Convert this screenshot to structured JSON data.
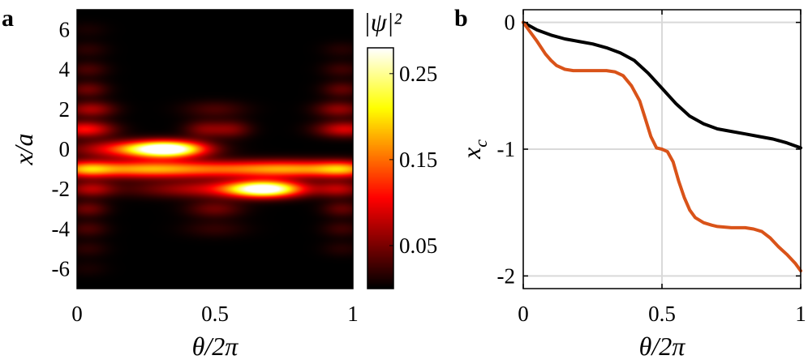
{
  "chart_data": [
    {
      "panel": "a",
      "type": "heatmap",
      "xlabel": "θ/2π",
      "ylabel": "x/a",
      "x_ticks": [
        "0",
        "0.5",
        "1"
      ],
      "y_ticks": [
        "6",
        "4",
        "2",
        "0",
        "-2",
        "-4",
        "-6"
      ],
      "xlim": [
        0,
        1
      ],
      "ylim": [
        -7,
        7
      ],
      "colorbar": {
        "label": "|ψ|²",
        "ticks": [
          "0.25",
          "0.15",
          "0.05"
        ],
        "range": [
          0,
          0.28
        ],
        "colormap": "hot"
      },
      "blobs": [
        {
          "x": 0.33,
          "y": 0,
          "sx": 0.09,
          "sy": 0.28,
          "amp": 0.28
        },
        {
          "x": 0.68,
          "y": -2,
          "sx": 0.09,
          "sy": 0.28,
          "amp": 0.28
        },
        {
          "x": 0.2,
          "y": 0,
          "sx": 0.14,
          "sy": 0.3,
          "amp": 0.12
        },
        {
          "x": 0.5,
          "y": -1,
          "sx": 0.28,
          "sy": 0.3,
          "amp": 0.12
        },
        {
          "x": 0.22,
          "y": -1,
          "sx": 0.15,
          "sy": 0.3,
          "amp": 0.1
        },
        {
          "x": 0.8,
          "y": -1,
          "sx": 0.15,
          "sy": 0.3,
          "amp": 0.1
        },
        {
          "x": 0.5,
          "y": -2,
          "sx": 0.2,
          "sy": 0.3,
          "amp": 0.08
        },
        {
          "x": 0.03,
          "y": 1,
          "sx": 0.07,
          "sy": 0.28,
          "amp": 0.11
        },
        {
          "x": 0.03,
          "y": -1,
          "sx": 0.07,
          "sy": 0.28,
          "amp": 0.12
        },
        {
          "x": 0.97,
          "y": -1,
          "sx": 0.07,
          "sy": 0.28,
          "amp": 0.11
        },
        {
          "x": 0.97,
          "y": 1,
          "sx": 0.07,
          "sy": 0.28,
          "amp": 0.09
        },
        {
          "x": 0.05,
          "y": 2,
          "sx": 0.06,
          "sy": 0.28,
          "amp": 0.07
        },
        {
          "x": 0.05,
          "y": -2,
          "sx": 0.06,
          "sy": 0.28,
          "amp": 0.07
        },
        {
          "x": 0.95,
          "y": -2,
          "sx": 0.06,
          "sy": 0.28,
          "amp": 0.07
        },
        {
          "x": 0.95,
          "y": 2,
          "sx": 0.06,
          "sy": 0.28,
          "amp": 0.06
        },
        {
          "x": 0.04,
          "y": 3,
          "sx": 0.05,
          "sy": 0.28,
          "amp": 0.045
        },
        {
          "x": 0.04,
          "y": -3,
          "sx": 0.05,
          "sy": 0.28,
          "amp": 0.045
        },
        {
          "x": 0.96,
          "y": -3,
          "sx": 0.05,
          "sy": 0.28,
          "amp": 0.04
        },
        {
          "x": 0.96,
          "y": 3,
          "sx": 0.05,
          "sy": 0.28,
          "amp": 0.04
        },
        {
          "x": 0.04,
          "y": 4,
          "sx": 0.05,
          "sy": 0.28,
          "amp": 0.03
        },
        {
          "x": 0.04,
          "y": -4,
          "sx": 0.05,
          "sy": 0.28,
          "amp": 0.03
        },
        {
          "x": 0.96,
          "y": 4,
          "sx": 0.05,
          "sy": 0.28,
          "amp": 0.025
        },
        {
          "x": 0.96,
          "y": -4,
          "sx": 0.05,
          "sy": 0.28,
          "amp": 0.025
        },
        {
          "x": 0.04,
          "y": 5,
          "sx": 0.05,
          "sy": 0.28,
          "amp": 0.018
        },
        {
          "x": 0.04,
          "y": -5,
          "sx": 0.05,
          "sy": 0.28,
          "amp": 0.018
        },
        {
          "x": 0.96,
          "y": 5,
          "sx": 0.05,
          "sy": 0.28,
          "amp": 0.015
        },
        {
          "x": 0.96,
          "y": -5,
          "sx": 0.05,
          "sy": 0.28,
          "amp": 0.015
        },
        {
          "x": 0.04,
          "y": 6,
          "sx": 0.05,
          "sy": 0.28,
          "amp": 0.01
        },
        {
          "x": 0.04,
          "y": -6,
          "sx": 0.05,
          "sy": 0.28,
          "amp": 0.01
        },
        {
          "x": 0.46,
          "y": 1,
          "sx": 0.05,
          "sy": 0.3,
          "amp": 0.05
        },
        {
          "x": 0.56,
          "y": 1,
          "sx": 0.05,
          "sy": 0.3,
          "amp": 0.05
        },
        {
          "x": 0.5,
          "y": -3,
          "sx": 0.07,
          "sy": 0.3,
          "amp": 0.045
        },
        {
          "x": 0.5,
          "y": 2,
          "sx": 0.08,
          "sy": 0.3,
          "amp": 0.03
        },
        {
          "x": 0.5,
          "y": -4,
          "sx": 0.08,
          "sy": 0.3,
          "amp": 0.02
        }
      ]
    },
    {
      "panel": "b",
      "type": "line",
      "xlabel": "θ/2π",
      "ylabel": "x",
      "ylabel_sub": "c",
      "x_ticks": [
        "0",
        "0.5",
        "1"
      ],
      "y_ticks": [
        "0",
        "-1",
        "-2"
      ],
      "xlim": [
        0,
        1
      ],
      "ylim": [
        -2.1,
        0.1
      ],
      "grid": true,
      "series": [
        {
          "color": "#000000",
          "x": [
            0,
            0.05,
            0.1,
            0.15,
            0.2,
            0.25,
            0.3,
            0.35,
            0.4,
            0.45,
            0.5,
            0.55,
            0.6,
            0.65,
            0.7,
            0.75,
            0.8,
            0.85,
            0.9,
            0.95,
            1
          ],
          "y": [
            0,
            -0.06,
            -0.1,
            -0.13,
            -0.15,
            -0.17,
            -0.2,
            -0.24,
            -0.3,
            -0.4,
            -0.52,
            -0.64,
            -0.74,
            -0.8,
            -0.84,
            -0.86,
            -0.88,
            -0.9,
            -0.92,
            -0.95,
            -0.99
          ]
        },
        {
          "color": "#d95319",
          "x": [
            0,
            0.02,
            0.05,
            0.08,
            0.1,
            0.12,
            0.15,
            0.18,
            0.2,
            0.25,
            0.3,
            0.33,
            0.36,
            0.39,
            0.42,
            0.44,
            0.46,
            0.48,
            0.5,
            0.52,
            0.54,
            0.56,
            0.58,
            0.6,
            0.62,
            0.65,
            0.68,
            0.7,
            0.75,
            0.8,
            0.83,
            0.86,
            0.89,
            0.92,
            0.95,
            0.98,
            1
          ],
          "y": [
            0,
            -0.06,
            -0.15,
            -0.25,
            -0.3,
            -0.34,
            -0.37,
            -0.38,
            -0.38,
            -0.38,
            -0.38,
            -0.39,
            -0.42,
            -0.5,
            -0.62,
            -0.76,
            -0.9,
            -0.99,
            -1.0,
            -1.02,
            -1.1,
            -1.25,
            -1.38,
            -1.48,
            -1.54,
            -1.58,
            -1.6,
            -1.61,
            -1.62,
            -1.62,
            -1.63,
            -1.65,
            -1.7,
            -1.77,
            -1.83,
            -1.9,
            -1.96
          ]
        }
      ]
    }
  ]
}
